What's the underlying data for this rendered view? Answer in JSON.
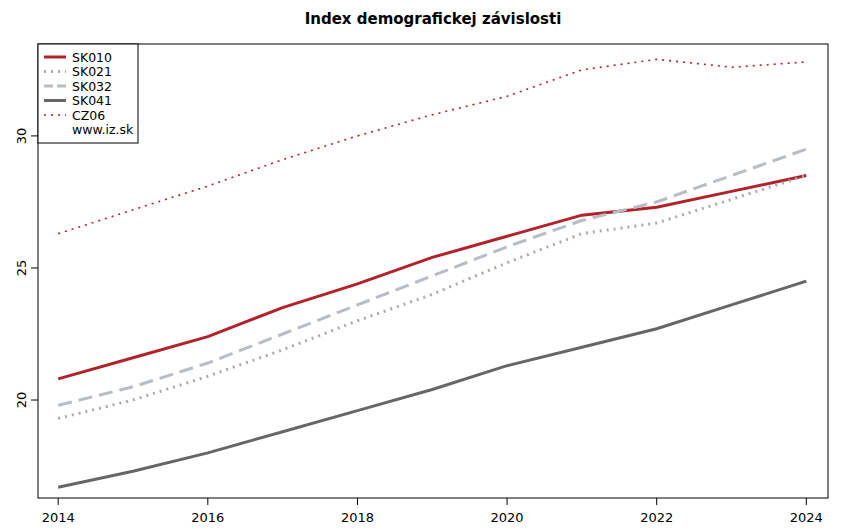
{
  "chart_data": {
    "type": "line",
    "title": "Index demografickej závislosti",
    "x": [
      2014,
      2015,
      2016,
      2017,
      2018,
      2019,
      2020,
      2021,
      2022,
      2023,
      2024
    ],
    "series": [
      {
        "name": "SK010",
        "color": "#b2222a",
        "line_style": "solid",
        "values": [
          20.8,
          21.6,
          22.4,
          23.5,
          24.4,
          25.4,
          26.2,
          27.0,
          27.3,
          27.9,
          28.5
        ]
      },
      {
        "name": "SK021",
        "color": "#a9abb2",
        "line_style": "dotted",
        "values": [
          19.3,
          20.0,
          20.9,
          21.9,
          23.0,
          24.0,
          25.2,
          26.3,
          26.7,
          27.6,
          28.5
        ]
      },
      {
        "name": "SK032",
        "color": "#b8bcc4",
        "line_style": "dashed",
        "values": [
          19.8,
          20.5,
          21.4,
          22.5,
          23.6,
          24.7,
          25.8,
          26.8,
          27.5,
          28.5,
          29.5
        ]
      },
      {
        "name": "SK041",
        "color": "#666666",
        "line_style": "solid",
        "values": [
          16.7,
          17.3,
          18.0,
          18.8,
          19.6,
          20.4,
          21.3,
          22.0,
          22.7,
          23.6,
          24.5
        ]
      },
      {
        "name": "CZ06",
        "color": "#b2222a",
        "line_style": "dotted",
        "values": [
          26.3,
          27.2,
          28.1,
          29.1,
          30.0,
          30.8,
          31.5,
          32.5,
          32.9,
          32.6,
          32.8
        ]
      }
    ],
    "annotations": [
      "www.iz.sk"
    ],
    "xlim": [
      2013.73,
      2024.29
    ],
    "xticks": [
      2014,
      2016,
      2018,
      2020,
      2022,
      2024
    ],
    "ylim": [
      16.29,
      33.48
    ],
    "yticks": [
      20,
      25,
      30
    ],
    "legend": "top-left",
    "grid": false
  }
}
